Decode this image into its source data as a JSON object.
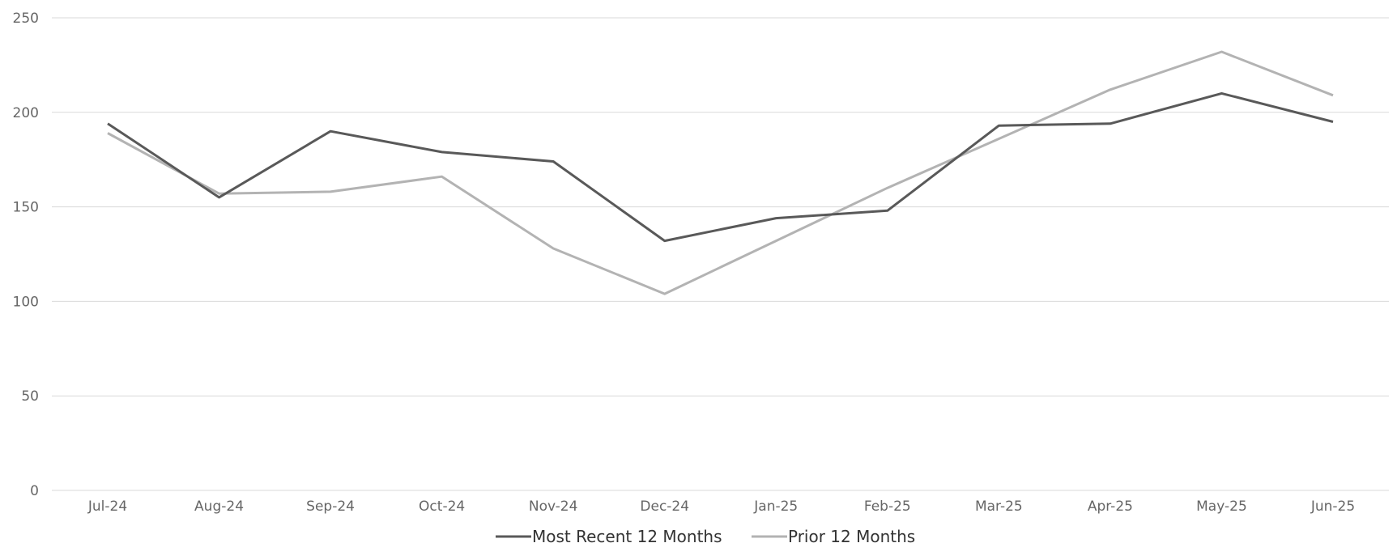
{
  "chart_data": {
    "type": "line",
    "categories": [
      "Jul-24",
      "Aug-24",
      "Sep-24",
      "Oct-24",
      "Nov-24",
      "Dec-24",
      "Jan-25",
      "Feb-25",
      "Mar-25",
      "Apr-25",
      "May-25",
      "Jun-25"
    ],
    "series": [
      {
        "name": "Most Recent 12 Months",
        "color": "#595959",
        "values": [
          194,
          155,
          190,
          179,
          174,
          132,
          144,
          148,
          193,
          194,
          210,
          195
        ]
      },
      {
        "name": "Prior 12 Months",
        "color": "#b3b3b3",
        "values": [
          189,
          157,
          158,
          166,
          128,
          104,
          132,
          160,
          186,
          212,
          232,
          209
        ]
      }
    ],
    "yticks": [
      "0",
      "50",
      "100",
      "150",
      "200",
      "250"
    ],
    "ylim": [
      0,
      250
    ],
    "grid": true,
    "legend_position": "bottom-center",
    "gridline_color": "#d9d9d9"
  }
}
